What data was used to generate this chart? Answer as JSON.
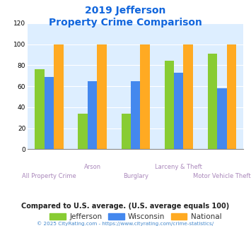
{
  "title_line1": "2019 Jefferson",
  "title_line2": "Property Crime Comparison",
  "categories": [
    "All Property Crime",
    "Arson",
    "Burglary",
    "Larceny & Theft",
    "Motor Vehicle Theft"
  ],
  "series": {
    "Jefferson": [
      76,
      34,
      34,
      84,
      91
    ],
    "Wisconsin": [
      69,
      65,
      65,
      73,
      58
    ],
    "National": [
      100,
      100,
      100,
      100,
      100
    ]
  },
  "colors": {
    "Jefferson": "#88cc33",
    "Wisconsin": "#4488ee",
    "National": "#ffaa22"
  },
  "ylim": [
    0,
    120
  ],
  "yticks": [
    0,
    20,
    40,
    60,
    80,
    100,
    120
  ],
  "plot_bg": "#ddeeff",
  "title_color": "#1166dd",
  "xlabel_color": "#aa88bb",
  "footer_text": "Compared to U.S. average. (U.S. average equals 100)",
  "copyright_text": "© 2025 CityRating.com - https://www.cityrating.com/crime-statistics/",
  "footer_color": "#222222",
  "copyright_color": "#4488cc"
}
